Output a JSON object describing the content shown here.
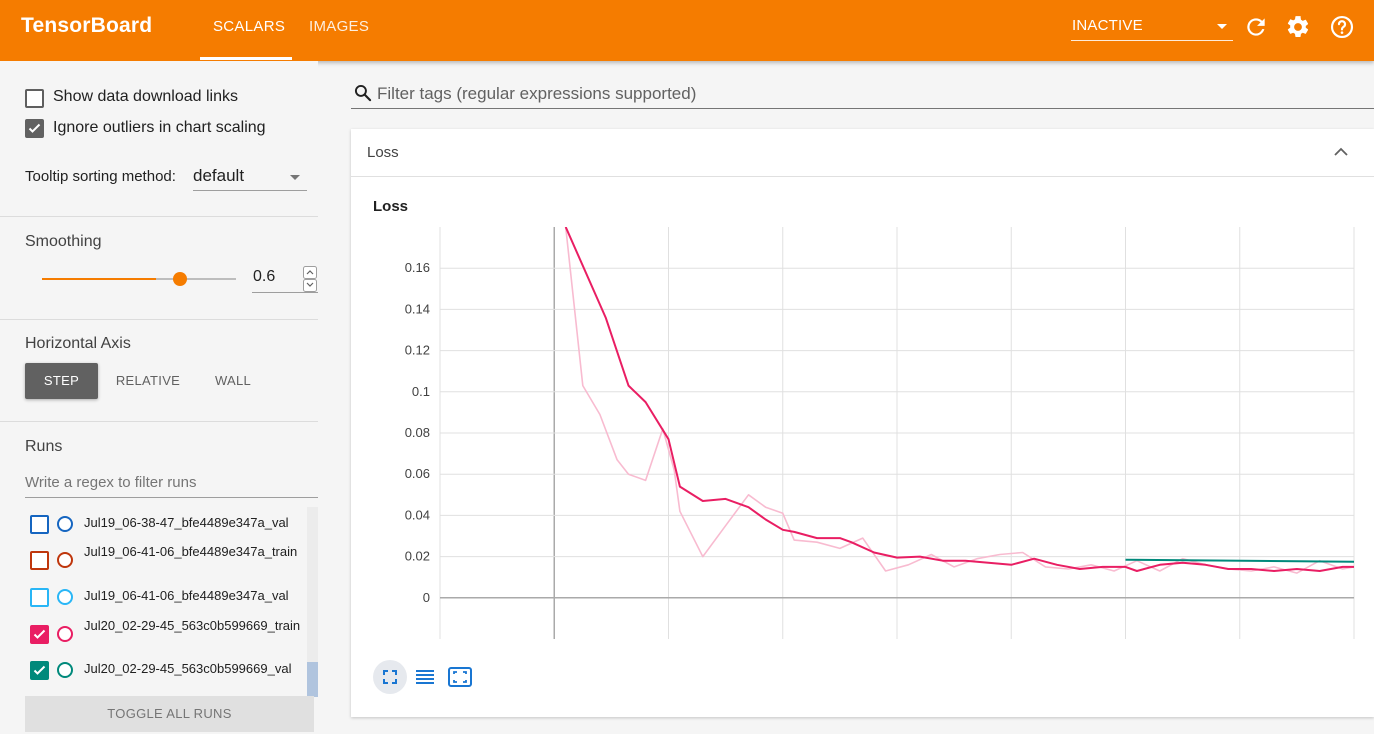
{
  "topbar": {
    "brand": "TensorBoard",
    "tabs": [
      {
        "label": "SCALARS",
        "active": true
      },
      {
        "label": "IMAGES",
        "active": false
      }
    ],
    "status_value": "INACTIVE",
    "icons": [
      "reload-icon",
      "gear-icon",
      "help-icon"
    ]
  },
  "sidebar": {
    "show_download_links": {
      "label": "Show data download links",
      "checked": false
    },
    "ignore_outliers": {
      "label": "Ignore outliers in chart scaling",
      "checked": true
    },
    "tooltip_sorting": {
      "label": "Tooltip sorting method:",
      "value": "default"
    },
    "smoothing": {
      "title": "Smoothing",
      "value": "0.6",
      "level": 0.6
    },
    "horizontal_axis": {
      "title": "Horizontal Axis",
      "options": [
        "STEP",
        "RELATIVE",
        "WALL"
      ],
      "selected": "STEP"
    },
    "runs": {
      "title": "Runs",
      "filter_placeholder": "Write a regex to filter runs",
      "items": [
        {
          "label": "Jul19_06-38-47_bfe4489e347a_val",
          "checked": false,
          "color": "#1565c0"
        },
        {
          "label": "Jul19_06-41-06_bfe4489e347a_train",
          "checked": false,
          "color": "#bf360c"
        },
        {
          "label": "Jul19_06-41-06_bfe4489e347a_val",
          "checked": false,
          "color": "#29b6f6"
        },
        {
          "label": "Jul20_02-29-45_563c0b599669_train",
          "checked": true,
          "color": "#e91e63"
        },
        {
          "label": "Jul20_02-29-45_563c0b599669_val",
          "checked": true,
          "color": "#00897b"
        }
      ],
      "toggle_all_label": "TOGGLE ALL RUNS"
    }
  },
  "main": {
    "filter_placeholder": "Filter tags (regular expressions supported)",
    "card": {
      "title": "Loss",
      "chart_title": "Loss",
      "buttons": [
        "fit-domain-icon",
        "toggle-lines-icon",
        "expand-icon"
      ]
    }
  },
  "colors": {
    "header": "#f57c00",
    "train_smoothed": "#e91e63",
    "train_raw": "#f8bbd0",
    "val": "#00897b"
  },
  "chart_data": {
    "type": "line",
    "title": "Loss",
    "xlabel": "",
    "ylabel": "",
    "y_ticks": [
      "0.16",
      "0.14",
      "0.12",
      "0.1",
      "0.08",
      "0.06",
      "0.04",
      "0.02",
      "0"
    ],
    "ylim": [
      -0.02,
      0.18
    ],
    "xlim": [
      -1,
      7
    ],
    "grid": true,
    "series": [
      {
        "name": "Jul20_02-29-45_563c0b599669_train",
        "color": "#e91e63",
        "raw_color": "#f8bbd0",
        "x": [
          0.1,
          0.45,
          0.65,
          0.8,
          1.0,
          1.1,
          1.3,
          1.5,
          1.7,
          1.85,
          2.0,
          2.1,
          2.3,
          2.5,
          2.6,
          2.8,
          3.0,
          3.2,
          3.4,
          3.6,
          3.8,
          4.0,
          4.2,
          4.4,
          4.6,
          4.8,
          5.0,
          5.1,
          5.3,
          5.5,
          5.7,
          5.9,
          6.1,
          6.3,
          6.5,
          6.7,
          6.9,
          7.0
        ],
        "values": [
          0.18,
          0.136,
          0.103,
          0.095,
          0.077,
          0.054,
          0.047,
          0.048,
          0.044,
          0.038,
          0.033,
          0.032,
          0.029,
          0.029,
          0.027,
          0.022,
          0.0195,
          0.02,
          0.018,
          0.018,
          0.017,
          0.016,
          0.019,
          0.016,
          0.014,
          0.015,
          0.015,
          0.013,
          0.016,
          0.017,
          0.016,
          0.014,
          0.014,
          0.013,
          0.014,
          0.013,
          0.015,
          0.015
        ],
        "raw_x": [
          0.1,
          0.25,
          0.4,
          0.55,
          0.65,
          0.8,
          0.95,
          1.05,
          1.1,
          1.3,
          1.5,
          1.7,
          1.85,
          2.0,
          2.1,
          2.3,
          2.5,
          2.7,
          2.9,
          3.1,
          3.3,
          3.5,
          3.7,
          3.9,
          4.1,
          4.3,
          4.5,
          4.7,
          4.9,
          5.1,
          5.3,
          5.5,
          5.7,
          5.9,
          6.1,
          6.3,
          6.5,
          6.7,
          6.9,
          7.0
        ],
        "raw_values": [
          0.18,
          0.103,
          0.089,
          0.067,
          0.06,
          0.057,
          0.082,
          0.062,
          0.042,
          0.02,
          0.035,
          0.05,
          0.044,
          0.041,
          0.028,
          0.027,
          0.024,
          0.029,
          0.013,
          0.016,
          0.021,
          0.015,
          0.019,
          0.021,
          0.022,
          0.015,
          0.014,
          0.016,
          0.013,
          0.018,
          0.013,
          0.019,
          0.016,
          0.014,
          0.013,
          0.015,
          0.012,
          0.018,
          0.014,
          0.015
        ]
      },
      {
        "name": "Jul20_02-29-45_563c0b599669_val",
        "color": "#00897b",
        "x": [
          5.0,
          7.0
        ],
        "values": [
          0.0185,
          0.0175
        ]
      }
    ]
  }
}
